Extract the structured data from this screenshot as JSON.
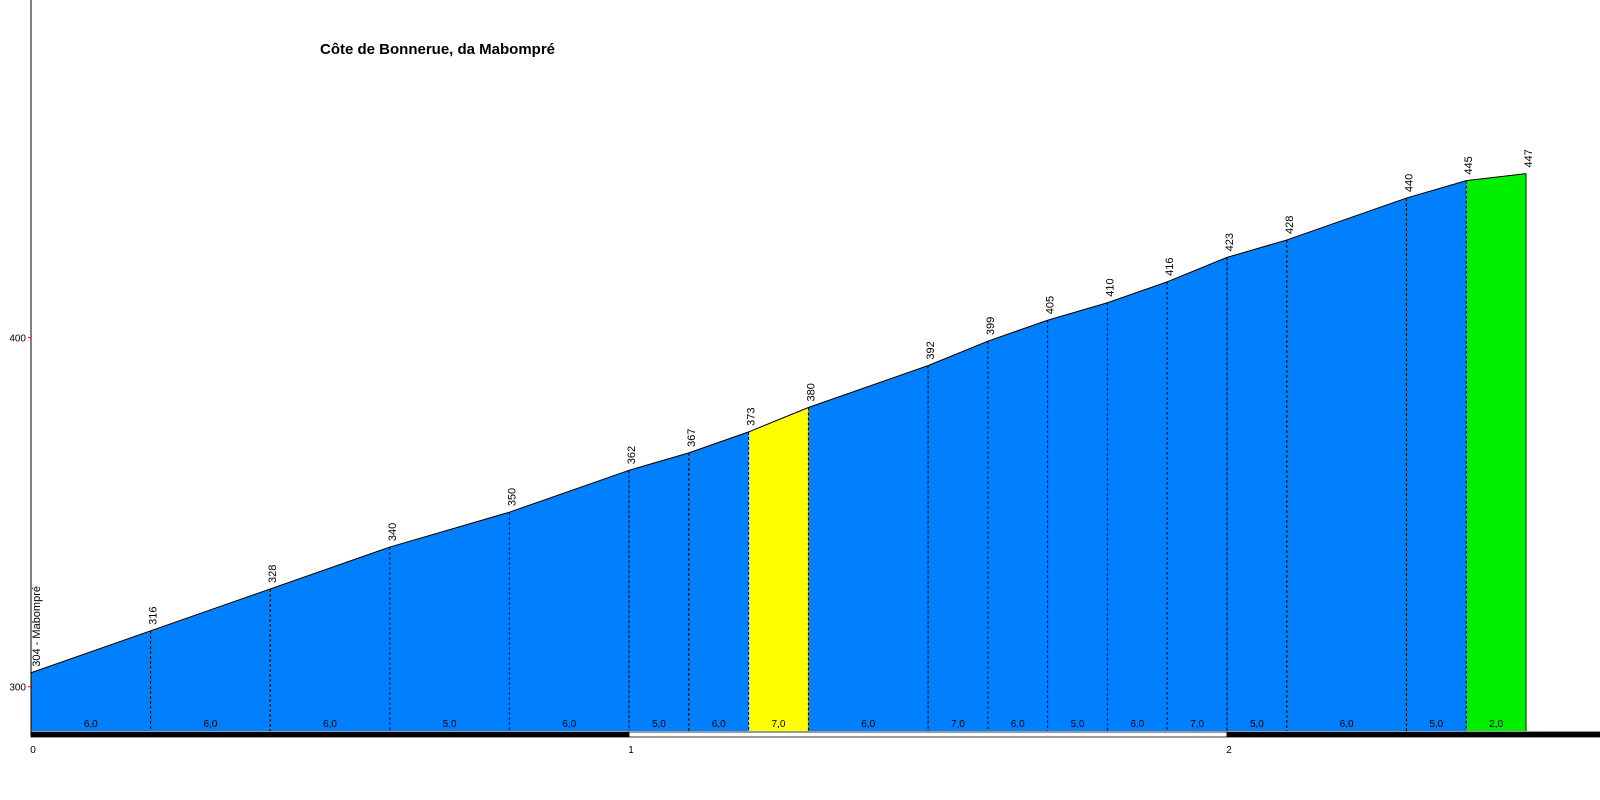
{
  "chart_data": {
    "type": "area",
    "title": "Côte de Bonnerue, da Mabompré",
    "start_label": "304 - Mabompré",
    "x_unit": "km",
    "xlim": [
      0,
      2.6
    ],
    "ylim": [
      287.3,
      485
    ],
    "x_ticks": [
      0,
      1,
      2
    ],
    "x_tick_labels": [
      "0",
      "1",
      "2"
    ],
    "y_ticks": [
      300,
      400
    ],
    "y_tick_labels": [
      "300",
      "400"
    ],
    "points": [
      {
        "x": 0.0,
        "y": 304
      },
      {
        "x": 0.2,
        "y": 316
      },
      {
        "x": 0.4,
        "y": 328
      },
      {
        "x": 0.6,
        "y": 340
      },
      {
        "x": 0.8,
        "y": 350
      },
      {
        "x": 1.0,
        "y": 362
      },
      {
        "x": 1.1,
        "y": 367
      },
      {
        "x": 1.2,
        "y": 373
      },
      {
        "x": 1.3,
        "y": 380
      },
      {
        "x": 1.5,
        "y": 392
      },
      {
        "x": 1.6,
        "y": 399
      },
      {
        "x": 1.7,
        "y": 405
      },
      {
        "x": 1.8,
        "y": 410
      },
      {
        "x": 1.9,
        "y": 416
      },
      {
        "x": 2.0,
        "y": 423
      },
      {
        "x": 2.1,
        "y": 428
      },
      {
        "x": 2.3,
        "y": 440
      },
      {
        "x": 2.4,
        "y": 445
      },
      {
        "x": 2.5,
        "y": 447
      }
    ],
    "point_labels": [
      "304 - Mabompré",
      "316",
      "328",
      "340",
      "350",
      "362",
      "367",
      "373",
      "380",
      "392",
      "399",
      "405",
      "410",
      "416",
      "423",
      "428",
      "440",
      "445",
      "447"
    ],
    "segments": [
      {
        "from": 0.0,
        "to": 0.2,
        "gradient": "6,0",
        "color": "#0080ff"
      },
      {
        "from": 0.2,
        "to": 0.4,
        "gradient": "6,0",
        "color": "#0080ff"
      },
      {
        "from": 0.4,
        "to": 0.6,
        "gradient": "6,0",
        "color": "#0080ff"
      },
      {
        "from": 0.6,
        "to": 0.8,
        "gradient": "5,0",
        "color": "#0080ff"
      },
      {
        "from": 0.8,
        "to": 1.0,
        "gradient": "6,0",
        "color": "#0080ff"
      },
      {
        "from": 1.0,
        "to": 1.1,
        "gradient": "5,0",
        "color": "#0080ff"
      },
      {
        "from": 1.1,
        "to": 1.2,
        "gradient": "6,0",
        "color": "#0080ff"
      },
      {
        "from": 1.2,
        "to": 1.3,
        "gradient": "7,0",
        "color": "#ffff00"
      },
      {
        "from": 1.3,
        "to": 1.5,
        "gradient": "6,0",
        "color": "#0080ff"
      },
      {
        "from": 1.5,
        "to": 1.6,
        "gradient": "7,0",
        "color": "#0080ff"
      },
      {
        "from": 1.6,
        "to": 1.7,
        "gradient": "6,0",
        "color": "#0080ff"
      },
      {
        "from": 1.7,
        "to": 1.8,
        "gradient": "5,0",
        "color": "#0080ff"
      },
      {
        "from": 1.8,
        "to": 1.9,
        "gradient": "6,0",
        "color": "#0080ff"
      },
      {
        "from": 1.9,
        "to": 2.0,
        "gradient": "7,0",
        "color": "#0080ff"
      },
      {
        "from": 2.0,
        "to": 2.1,
        "gradient": "5,0",
        "color": "#0080ff"
      },
      {
        "from": 2.1,
        "to": 2.3,
        "gradient": "6,0",
        "color": "#0080ff"
      },
      {
        "from": 2.3,
        "to": 2.4,
        "gradient": "5,0",
        "color": "#0080ff"
      },
      {
        "from": 2.4,
        "to": 2.5,
        "gradient": "2,0",
        "color": "#00ee00"
      }
    ],
    "km_bar": [
      {
        "from": 0.0,
        "to": 1.0,
        "color": "#000000"
      },
      {
        "from": 1.0,
        "to": 2.0,
        "color": "#ffffff"
      },
      {
        "from": 2.0,
        "to": 2.63,
        "color": "#000000"
      }
    ],
    "grid": false,
    "legend": "none"
  }
}
